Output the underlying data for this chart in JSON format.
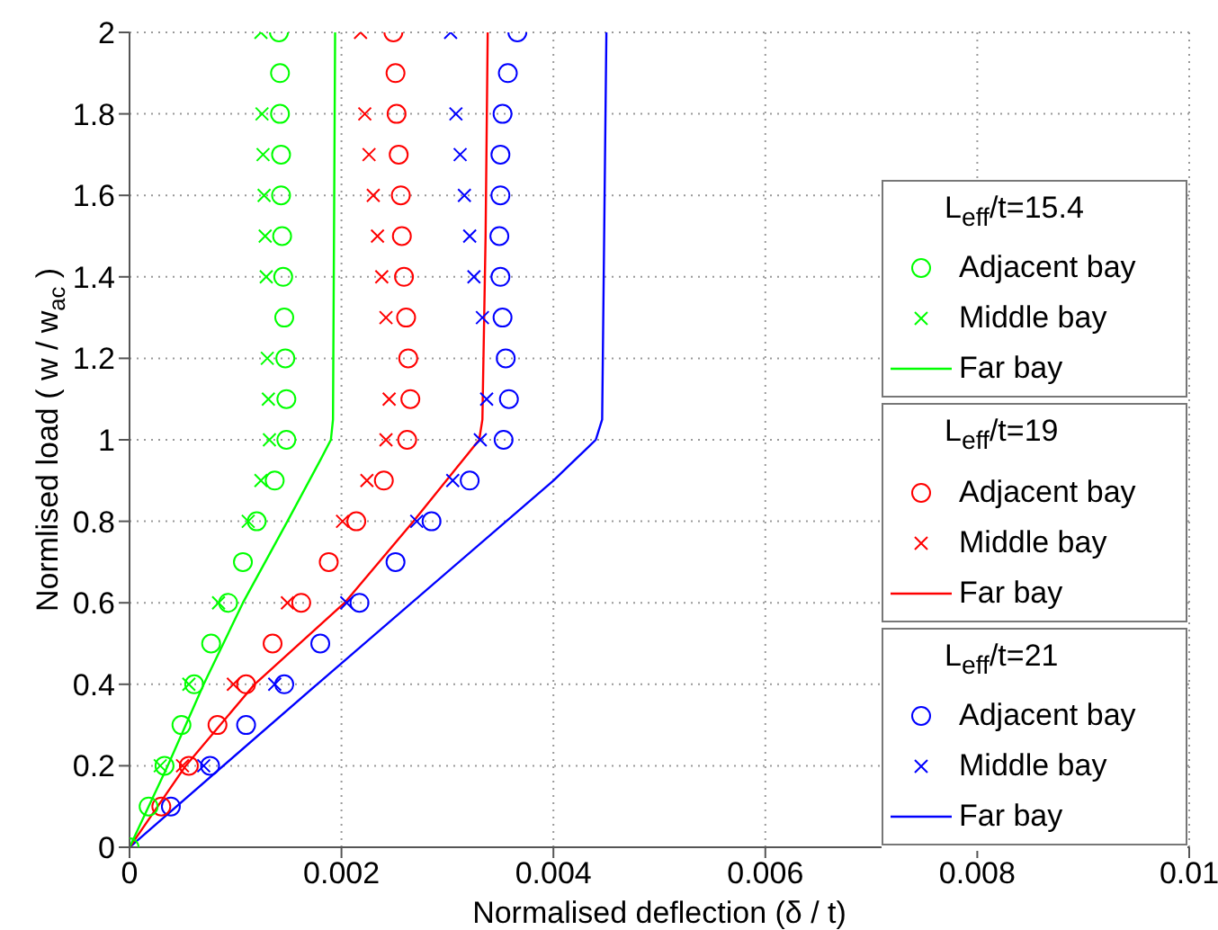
{
  "chart_data": {
    "type": "scatter",
    "xlabel": "Normalised deflection (δ / t)",
    "ylabel": "Normlised load ( w / w$_{ac}$ )",
    "xlim": [
      0,
      0.01
    ],
    "ylim": [
      0,
      2
    ],
    "xticks": [
      0,
      0.002,
      0.004,
      0.006,
      0.008,
      0.01
    ],
    "yticks": [
      0,
      0.2,
      0.4,
      0.6,
      0.8,
      1,
      1.2,
      1.4,
      1.6,
      1.8,
      2
    ],
    "grid": true,
    "legend": "right",
    "legend_title": [
      "L$_{eff}$/t=15.4",
      "L$_{eff}$/t=19",
      "L$_{eff}$/t=21"
    ],
    "series": [
      {
        "name": "Adjacent bay",
        "marker": "circle",
        "color": "#00ff00",
        "x": [
          0,
          0.00018,
          0.00033,
          0.00049,
          0.00061,
          0.00077,
          0.00093,
          0.00107,
          0.0012,
          0.00137,
          0.00148,
          0.00148,
          0.00147,
          0.00146,
          0.00145,
          0.00144,
          0.00143,
          0.00143,
          0.00142,
          0.00142,
          0.00141
        ],
        "values": [
          0,
          0.1,
          0.2,
          0.3,
          0.4,
          0.5,
          0.6,
          0.7,
          0.8,
          0.9,
          1,
          1.1,
          1.2,
          1.3,
          1.4,
          1.5,
          1.6,
          1.7,
          1.8,
          1.9,
          2
        ]
      },
      {
        "name": "Middle bay",
        "marker": "cross",
        "color": "#00ff00",
        "x": [
          0.00029,
          0.00056,
          0.00084,
          0.00112,
          0.00124,
          0.00132,
          0.00131,
          0.0013,
          0.00129,
          0.00128,
          0.00127,
          0.00126,
          0.00125,
          0.00124
        ],
        "values": [
          0.2,
          0.4,
          0.6,
          0.8,
          0.9,
          1,
          1.1,
          1.2,
          1.4,
          1.5,
          1.6,
          1.7,
          1.8,
          2
        ]
      },
      {
        "name": "Far bay",
        "type": "line",
        "marker": "none",
        "color": "#00ff00",
        "x": [
          0,
          0.00036,
          0.0007,
          0.00107,
          0.00149,
          0.0018,
          0.0019,
          0.00192,
          0.00194
        ],
        "values": [
          0,
          0.2,
          0.4,
          0.6,
          0.8,
          0.95,
          1,
          1.05,
          2
        ]
      },
      {
        "name": "Adjacent bay",
        "marker": "circle",
        "color": "#ff0000",
        "x": [
          0.0003,
          0.00056,
          0.00083,
          0.0011,
          0.00135,
          0.00162,
          0.00188,
          0.00214,
          0.0024,
          0.00262,
          0.00265,
          0.00263,
          0.00261,
          0.00259,
          0.00257,
          0.00256,
          0.00254,
          0.00252,
          0.00251,
          0.00249
        ],
        "values": [
          0.1,
          0.2,
          0.3,
          0.4,
          0.5,
          0.6,
          0.7,
          0.8,
          0.9,
          1,
          1.1,
          1.2,
          1.3,
          1.4,
          1.5,
          1.6,
          1.7,
          1.8,
          1.9,
          2
        ]
      },
      {
        "name": "Middle bay",
        "marker": "cross",
        "color": "#ff0000",
        "x": [
          0.0005,
          0.00098,
          0.00149,
          0.00201,
          0.00224,
          0.00242,
          0.00245,
          0.00242,
          0.00238,
          0.00234,
          0.0023,
          0.00226,
          0.00222,
          0.00218
        ],
        "values": [
          0.2,
          0.4,
          0.6,
          0.8,
          0.9,
          1,
          1.1,
          1.3,
          1.4,
          1.5,
          1.6,
          1.7,
          1.8,
          2
        ]
      },
      {
        "name": "Far bay",
        "type": "line",
        "marker": "none",
        "color": "#ff0000",
        "x": [
          0,
          0.00053,
          0.00118,
          0.00203,
          0.00268,
          0.0033,
          0.00333,
          0.00336,
          0.00338
        ],
        "values": [
          0,
          0.2,
          0.4,
          0.6,
          0.8,
          1,
          1.05,
          1.5,
          2
        ]
      },
      {
        "name": "Adjacent bay",
        "marker": "circle",
        "color": "#0000ff",
        "x": [
          0.00039,
          0.00076,
          0.0011,
          0.00146,
          0.0018,
          0.00217,
          0.00251,
          0.00285,
          0.00321,
          0.00353,
          0.00358,
          0.00355,
          0.00352,
          0.0035,
          0.00349,
          0.0035,
          0.0035,
          0.00352,
          0.00357,
          0.00366
        ],
        "values": [
          0.1,
          0.2,
          0.3,
          0.4,
          0.5,
          0.6,
          0.7,
          0.8,
          0.9,
          1,
          1.1,
          1.2,
          1.3,
          1.4,
          1.5,
          1.6,
          1.7,
          1.8,
          1.9,
          2
        ]
      },
      {
        "name": "Middle bay",
        "marker": "cross",
        "color": "#0000ff",
        "x": [
          0.0007,
          0.00137,
          0.00205,
          0.00271,
          0.00305,
          0.00331,
          0.00337,
          0.00333,
          0.00325,
          0.00321,
          0.00316,
          0.00312,
          0.00308,
          0.00303
        ],
        "values": [
          0.2,
          0.4,
          0.6,
          0.8,
          0.9,
          1,
          1.1,
          1.3,
          1.4,
          1.5,
          1.6,
          1.7,
          1.8,
          2
        ]
      },
      {
        "name": "Far bay",
        "type": "line",
        "marker": "none",
        "color": "#0000ff",
        "x": [
          0,
          0.00177,
          0.004,
          0.00432,
          0.0044,
          0.00446,
          0.0045
        ],
        "values": [
          0,
          0.4,
          0.9,
          0.98,
          1,
          1.05,
          2
        ]
      }
    ]
  }
}
